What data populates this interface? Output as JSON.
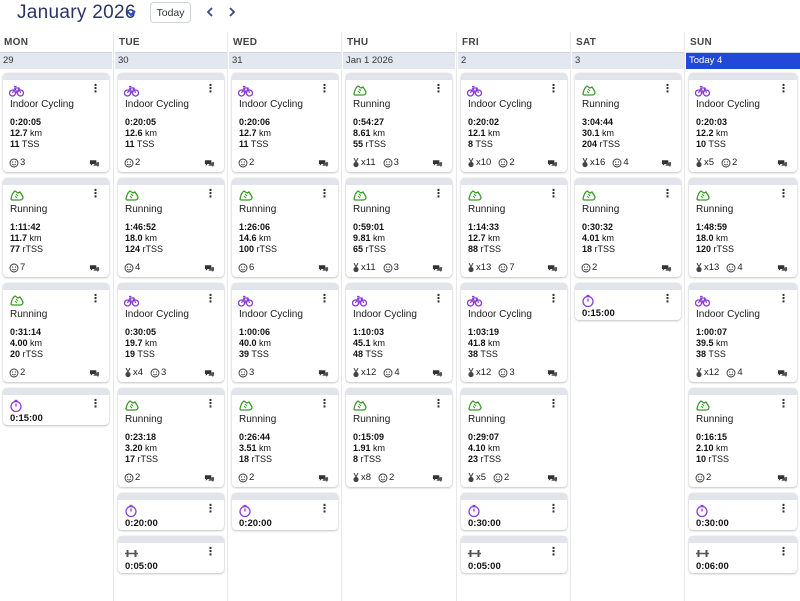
{
  "header": {
    "title": "January 2026",
    "today_label": "Today"
  },
  "weekdays": [
    "MON",
    "TUE",
    "WED",
    "THU",
    "FRI",
    "SAT",
    "SUN"
  ],
  "dates": [
    "29",
    "30",
    "31",
    "Jan 1 2026",
    "2",
    "3",
    "Today 4"
  ],
  "colors": {
    "accent": "#2347d8",
    "cycling": "#8a3bd8",
    "running": "#3a9a2a",
    "timer": "#8a3bd8"
  },
  "columns": [
    {
      "cards": [
        {
          "type": "cycling",
          "title": "Indoor Cycling",
          "time": "0:20:05",
          "dist_val": "12.7",
          "dist_unit": "km",
          "tss_val": "11",
          "tss_unit": "TSS",
          "smiles": "3"
        },
        {
          "type": "running",
          "title": "Running",
          "time": "1:11:42",
          "dist_val": "11.7",
          "dist_unit": "km",
          "tss_val": "77",
          "tss_unit": "rTSS",
          "smiles": "7"
        },
        {
          "type": "running",
          "title": "Running",
          "time": "0:31:14",
          "dist_val": "4.00",
          "dist_unit": "km",
          "tss_val": "20",
          "tss_unit": "rTSS",
          "smiles": "2"
        },
        {
          "type": "timer",
          "time": "0:15:00"
        }
      ]
    },
    {
      "cards": [
        {
          "type": "cycling",
          "title": "Indoor Cycling",
          "time": "0:20:05",
          "dist_val": "12.6",
          "dist_unit": "km",
          "tss_val": "11",
          "tss_unit": "TSS",
          "smiles": "2"
        },
        {
          "type": "running",
          "title": "Running",
          "time": "1:46:52",
          "dist_val": "18.0",
          "dist_unit": "km",
          "tss_val": "124",
          "tss_unit": "rTSS",
          "smiles": "4"
        },
        {
          "type": "cycling",
          "title": "Indoor Cycling",
          "time": "0:30:05",
          "dist_val": "19.7",
          "dist_unit": "km",
          "tss_val": "19",
          "tss_unit": "TSS",
          "medals": "x4",
          "smiles": "3"
        },
        {
          "type": "running",
          "title": "Running",
          "time": "0:23:18",
          "dist_val": "3.20",
          "dist_unit": "km",
          "tss_val": "17",
          "tss_unit": "rTSS",
          "smiles": "2"
        },
        {
          "type": "timer",
          "time": "0:20:00"
        },
        {
          "type": "strength",
          "time": "0:05:00"
        }
      ]
    },
    {
      "cards": [
        {
          "type": "cycling",
          "title": "Indoor Cycling",
          "time": "0:20:06",
          "dist_val": "12.7",
          "dist_unit": "km",
          "tss_val": "11",
          "tss_unit": "TSS",
          "smiles": "2"
        },
        {
          "type": "running",
          "title": "Running",
          "time": "1:26:06",
          "dist_val": "14.6",
          "dist_unit": "km",
          "tss_val": "100",
          "tss_unit": "rTSS",
          "smiles": "6"
        },
        {
          "type": "cycling",
          "title": "Indoor Cycling",
          "time": "1:00:06",
          "dist_val": "40.0",
          "dist_unit": "km",
          "tss_val": "39",
          "tss_unit": "TSS",
          "smiles": "3"
        },
        {
          "type": "running",
          "title": "Running",
          "time": "0:26:44",
          "dist_val": "3.51",
          "dist_unit": "km",
          "tss_val": "18",
          "tss_unit": "rTSS",
          "smiles": "2"
        },
        {
          "type": "timer",
          "time": "0:20:00"
        }
      ]
    },
    {
      "cards": [
        {
          "type": "running",
          "title": "Running",
          "time": "0:54:27",
          "dist_val": "8.61",
          "dist_unit": "km",
          "tss_val": "55",
          "tss_unit": "rTSS",
          "medals": "x11",
          "smiles": "3"
        },
        {
          "type": "running",
          "title": "Running",
          "time": "0:59:01",
          "dist_val": "9.81",
          "dist_unit": "km",
          "tss_val": "65",
          "tss_unit": "rTSS",
          "medals": "x11",
          "smiles": "3"
        },
        {
          "type": "cycling",
          "title": "Indoor Cycling",
          "time": "1:10:03",
          "dist_val": "45.1",
          "dist_unit": "km",
          "tss_val": "48",
          "tss_unit": "TSS",
          "medals": "x12",
          "smiles": "4"
        },
        {
          "type": "running",
          "title": "Running",
          "time": "0:15:09",
          "dist_val": "1.91",
          "dist_unit": "km",
          "tss_val": "8",
          "tss_unit": "rTSS",
          "medals": "x8",
          "smiles": "2"
        }
      ]
    },
    {
      "cards": [
        {
          "type": "cycling",
          "title": "Indoor Cycling",
          "time": "0:20:02",
          "dist_val": "12.1",
          "dist_unit": "km",
          "tss_val": "8",
          "tss_unit": "TSS",
          "medals": "x10",
          "smiles": "2"
        },
        {
          "type": "running",
          "title": "Running",
          "time": "1:14:33",
          "dist_val": "12.7",
          "dist_unit": "km",
          "tss_val": "88",
          "tss_unit": "rTSS",
          "medals": "x13",
          "smiles": "7"
        },
        {
          "type": "cycling",
          "title": "Indoor Cycling",
          "time": "1:03:19",
          "dist_val": "41.8",
          "dist_unit": "km",
          "tss_val": "38",
          "tss_unit": "TSS",
          "medals": "x12",
          "smiles": "3"
        },
        {
          "type": "running",
          "title": "Running",
          "time": "0:29:07",
          "dist_val": "4.10",
          "dist_unit": "km",
          "tss_val": "23",
          "tss_unit": "rTSS",
          "medals": "x5",
          "smiles": "2"
        },
        {
          "type": "timer",
          "time": "0:30:00"
        },
        {
          "type": "strength",
          "time": "0:05:00"
        }
      ]
    },
    {
      "cards": [
        {
          "type": "running",
          "title": "Running",
          "time": "3:04:44",
          "dist_val": "30.1",
          "dist_unit": "km",
          "tss_val": "204",
          "tss_unit": "rTSS",
          "medals": "x16",
          "smiles": "4"
        },
        {
          "type": "running",
          "title": "Running",
          "time": "0:30:32",
          "dist_val": "4.01",
          "dist_unit": "km",
          "tss_val": "18",
          "tss_unit": "rTSS",
          "smiles": "2"
        },
        {
          "type": "timer",
          "time": "0:15:00"
        }
      ]
    },
    {
      "cards": [
        {
          "type": "cycling",
          "title": "Indoor Cycling",
          "time": "0:20:03",
          "dist_val": "12.2",
          "dist_unit": "km",
          "tss_val": "10",
          "tss_unit": "TSS",
          "medals": "x5",
          "smiles": "2"
        },
        {
          "type": "running",
          "title": "Running",
          "time": "1:48:59",
          "dist_val": "18.0",
          "dist_unit": "km",
          "tss_val": "120",
          "tss_unit": "rTSS",
          "medals": "x13",
          "smiles": "4"
        },
        {
          "type": "cycling",
          "title": "Indoor Cycling",
          "time": "1:00:07",
          "dist_val": "39.5",
          "dist_unit": "km",
          "tss_val": "38",
          "tss_unit": "TSS",
          "medals": "x12",
          "smiles": "4"
        },
        {
          "type": "running",
          "title": "Running",
          "time": "0:16:15",
          "dist_val": "2.10",
          "dist_unit": "km",
          "tss_val": "10",
          "tss_unit": "rTSS",
          "smiles": "2"
        },
        {
          "type": "timer",
          "time": "0:30:00"
        },
        {
          "type": "strength",
          "time": "0:06:00"
        }
      ]
    }
  ]
}
